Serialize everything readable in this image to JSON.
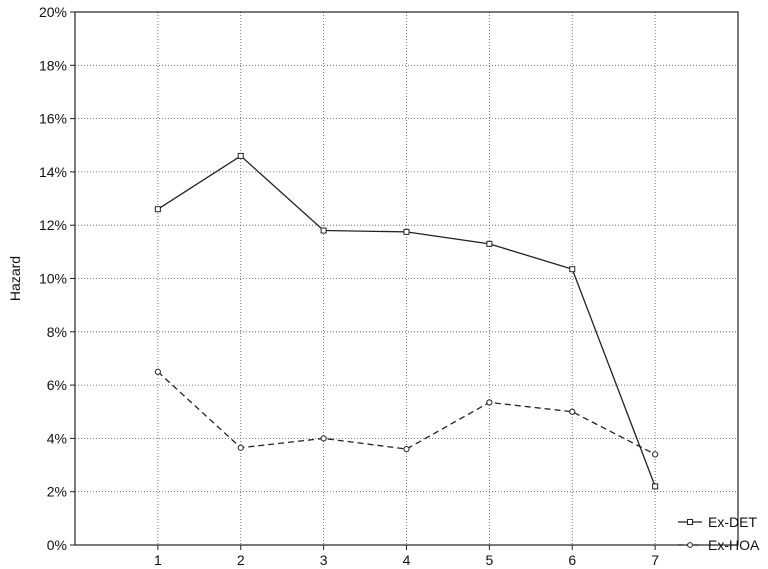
{
  "chart_data": {
    "type": "line",
    "title": "",
    "xlabel": "",
    "ylabel": "Hazard",
    "x": [
      1,
      2,
      3,
      4,
      5,
      6,
      7
    ],
    "xlim": [
      0,
      8
    ],
    "ylim": [
      0,
      20
    ],
    "y_tick_labels": [
      "0%",
      "2%",
      "4%",
      "6%",
      "8%",
      "10%",
      "12%",
      "14%",
      "16%",
      "18%",
      "20%"
    ],
    "x_tick_labels": [
      "1",
      "2",
      "3",
      "4",
      "5",
      "6",
      "7"
    ],
    "grid": true,
    "legend_position": "bottom-right",
    "series": [
      {
        "name": "Ex-DET",
        "values": [
          12.6,
          14.6,
          11.8,
          11.75,
          11.3,
          10.35,
          2.2
        ],
        "line_style": "solid",
        "marker": "open-square",
        "color": "#222222"
      },
      {
        "name": "Ex-HOA",
        "values": [
          6.5,
          3.65,
          4.0,
          3.6,
          5.35,
          5.0,
          3.4
        ],
        "line_style": "dashed",
        "marker": "open-circle",
        "color": "#222222"
      }
    ]
  }
}
